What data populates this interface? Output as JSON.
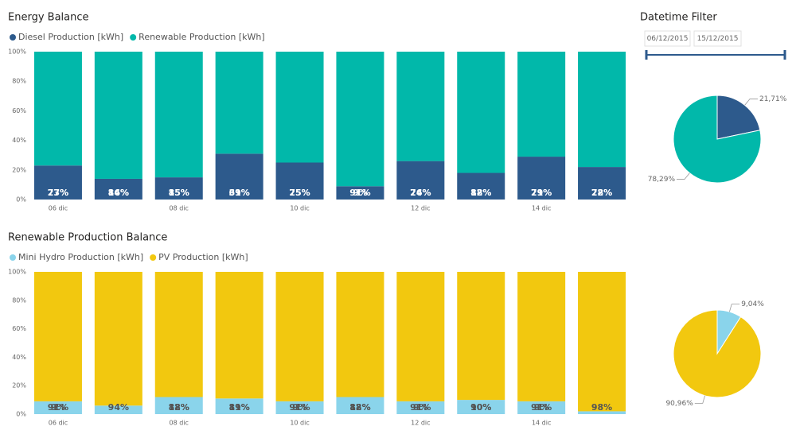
{
  "chart_data": [
    {
      "type": "stacked_bar_100",
      "title": "Energy Balance",
      "categories": [
        "06 dic",
        null,
        "08 dic",
        null,
        "10 dic",
        null,
        "12 dic",
        null,
        "14 dic",
        null
      ],
      "series": [
        {
          "name": "Diesel Production [kWh]",
          "color": "#2d5a8c",
          "values": [
            23,
            14,
            15,
            31,
            25,
            9,
            26,
            18,
            29,
            22
          ],
          "value_labels": [
            "23%",
            "14%",
            "15%",
            "31%",
            "25%",
            "9%",
            "26%",
            "18%",
            "29%",
            "22%"
          ]
        },
        {
          "name": "Renewable Production [kWh]",
          "color": "#01b8aa",
          "values": [
            77,
            86,
            85,
            69,
            75,
            91,
            74,
            82,
            71,
            78
          ],
          "value_labels": [
            "77%",
            "86%",
            "85%",
            "69%",
            "75%",
            "91%",
            "74%",
            "82%",
            "71%",
            "78%"
          ]
        }
      ],
      "label_color": "#ffffff",
      "ylim": [
        0,
        100
      ],
      "yticks": [
        {
          "value": 0,
          "label": "0%"
        },
        {
          "value": 20,
          "label": "20%"
        },
        {
          "value": 40,
          "label": "40%"
        },
        {
          "value": 60,
          "label": "60%"
        },
        {
          "value": 80,
          "label": "80%"
        },
        {
          "value": 100,
          "label": "100%"
        }
      ],
      "grid": false
    },
    {
      "type": "stacked_bar_100",
      "title": "Renewable Production Balance",
      "categories": [
        "06 dic",
        null,
        "08 dic",
        null,
        "10 dic",
        null,
        "12 dic",
        null,
        "14 dic",
        null
      ],
      "series": [
        {
          "name": "Mini Hydro Production [kWh]",
          "color": "#8ad4eb",
          "values": [
            9,
            6,
            12,
            11,
            9,
            12,
            9,
            10,
            9,
            2
          ],
          "value_labels": [
            "9%",
            null,
            "12%",
            "11%",
            "9%",
            "12%",
            "9%",
            "10%",
            "9%",
            null
          ]
        },
        {
          "name": "PV Production [kWh]",
          "color": "#f2c80f",
          "values": [
            91,
            94,
            88,
            89,
            91,
            88,
            91,
            90,
            91,
            98
          ],
          "value_labels": [
            "91%",
            "94%",
            "88%",
            "89%",
            "91%",
            "88%",
            "91%",
            "90%",
            "91%",
            "98%"
          ]
        }
      ],
      "label_color": "#555555",
      "ylim": [
        0,
        100
      ],
      "yticks": [
        {
          "value": 0,
          "label": "0%"
        },
        {
          "value": 20,
          "label": "20%"
        },
        {
          "value": 40,
          "label": "40%"
        },
        {
          "value": 60,
          "label": "60%"
        },
        {
          "value": 80,
          "label": "80%"
        },
        {
          "value": 100,
          "label": "100%"
        }
      ],
      "grid": false
    },
    {
      "type": "pie",
      "values": [
        21.71,
        78.29
      ],
      "value_labels": [
        "21,71%",
        "78,29%"
      ],
      "colors": [
        "#2d5a8c",
        "#01b8aa"
      ]
    },
    {
      "type": "pie",
      "values": [
        9.04,
        90.96
      ],
      "value_labels": [
        "9,04%",
        "90,96%"
      ],
      "colors": [
        "#8ad4eb",
        "#f2c80f"
      ]
    }
  ],
  "slicer": {
    "title": "Datetime Filter",
    "start": "06/12/2015",
    "end": "15/12/2015"
  }
}
